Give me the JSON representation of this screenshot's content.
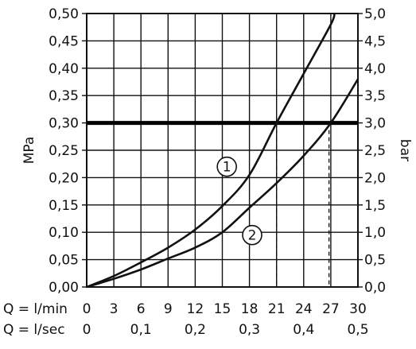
{
  "chart_data": {
    "type": "line",
    "left_axis": {
      "label": "MPa",
      "range": [
        0,
        0.5
      ],
      "ticks": [
        "0,00",
        "0,05",
        "0,10",
        "0,15",
        "0,20",
        "0,25",
        "0,30",
        "0,35",
        "0,40",
        "0,45",
        "0,50"
      ]
    },
    "right_axis": {
      "label": "bar",
      "range": [
        0,
        5
      ],
      "ticks": [
        "0,0",
        "0,5",
        "1,0",
        "1,5",
        "2,0",
        "2,5",
        "3,0",
        "3,5",
        "4,0",
        "4,5",
        "5,0"
      ]
    },
    "x_axis_lpm": {
      "label": "Q = l/min",
      "range": [
        0,
        30
      ],
      "ticks": [
        "0",
        "3",
        "6",
        "9",
        "12",
        "15",
        "18",
        "21",
        "24",
        "27",
        "30"
      ]
    },
    "x_axis_lps": {
      "label": "Q = l/sec",
      "range": [
        0,
        0.5
      ],
      "ticks": [
        "0",
        "0,1",
        "0,2",
        "0,3",
        "0,4",
        "0,5"
      ]
    },
    "grid": true,
    "reference_line": {
      "y": 0.3
    },
    "drop_lines": [
      21,
      26.8
    ],
    "series": [
      {
        "marker": "1",
        "label_at": {
          "x": 15.5,
          "y": 0.22
        },
        "points": [
          [
            0,
            0
          ],
          [
            3,
            0.02
          ],
          [
            6,
            0.045
          ],
          [
            9,
            0.072
          ],
          [
            12,
            0.105
          ],
          [
            15,
            0.148
          ],
          [
            18,
            0.205
          ],
          [
            21,
            0.3
          ],
          [
            24,
            0.39
          ],
          [
            27,
            0.48
          ],
          [
            27.4,
            0.5
          ]
        ]
      },
      {
        "marker": "2",
        "label_at": {
          "x": 18.3,
          "y": 0.095
        },
        "points": [
          [
            0,
            0
          ],
          [
            3,
            0.015
          ],
          [
            6,
            0.032
          ],
          [
            9,
            0.052
          ],
          [
            12,
            0.072
          ],
          [
            15,
            0.1
          ],
          [
            18,
            0.145
          ],
          [
            21,
            0.19
          ],
          [
            24,
            0.24
          ],
          [
            27,
            0.3
          ],
          [
            30,
            0.38
          ]
        ]
      }
    ]
  }
}
